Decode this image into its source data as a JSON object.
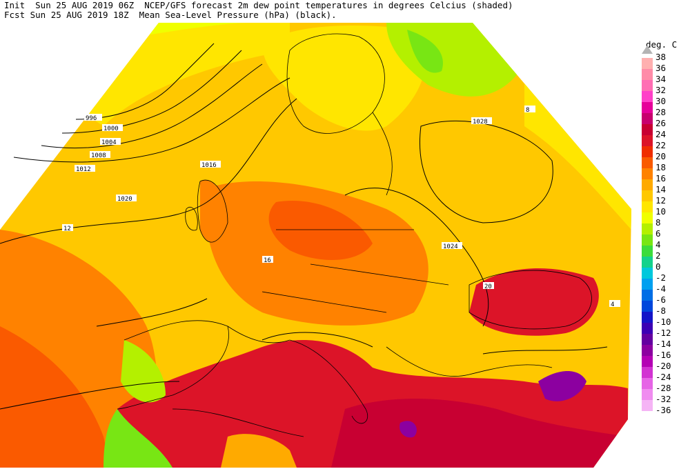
{
  "header": {
    "line1": "Init  Sun 25 AUG 2019 06Z  NCEP/GFS forecast 2m dew point temperatures in degrees Celcius (shaded)",
    "line2": "Fcst Sun 25 AUG 2019 18Z  Mean Sea-Level Pressure (hPa) (black)."
  },
  "legend": {
    "unit": "deg. C",
    "arrow_icon": "triangle-up-icon",
    "items": [
      {
        "label": "38",
        "color": "#b4b4b4"
      },
      {
        "label": "36",
        "color": "#ffb0b0"
      },
      {
        "label": "34",
        "color": "#ff8ca8"
      },
      {
        "label": "32",
        "color": "#ff6eb4"
      },
      {
        "label": "30",
        "color": "#ff40c8"
      },
      {
        "label": "28",
        "color": "#e6009a"
      },
      {
        "label": "26",
        "color": "#c8006e"
      },
      {
        "label": "24",
        "color": "#c80032"
      },
      {
        "label": "22",
        "color": "#dc1428"
      },
      {
        "label": "20",
        "color": "#f02d00"
      },
      {
        "label": "18",
        "color": "#fa5a00"
      },
      {
        "label": "16",
        "color": "#ff8200"
      },
      {
        "label": "14",
        "color": "#ffaa00"
      },
      {
        "label": "12",
        "color": "#ffc800"
      },
      {
        "label": "10",
        "color": "#ffe600"
      },
      {
        "label": "8",
        "color": "#f0ff00"
      },
      {
        "label": "6",
        "color": "#b4f000"
      },
      {
        "label": "4",
        "color": "#78e614"
      },
      {
        "label": "2",
        "color": "#3cdc3c"
      },
      {
        "label": "0",
        "color": "#14d28c"
      },
      {
        "label": "-2",
        "color": "#00c8dc"
      },
      {
        "label": "-4",
        "color": "#00a0f0"
      },
      {
        "label": "-6",
        "color": "#006ee6"
      },
      {
        "label": "-8",
        "color": "#0046dc"
      },
      {
        "label": "-10",
        "color": "#1414c8"
      },
      {
        "label": "-12",
        "color": "#3c00b4"
      },
      {
        "label": "-14",
        "color": "#6400a0"
      },
      {
        "label": "-16",
        "color": "#8c00a0"
      },
      {
        "label": "-20",
        "color": "#b400b4"
      },
      {
        "label": "-24",
        "color": "#d232d2"
      },
      {
        "label": "-28",
        "color": "#e664e6"
      },
      {
        "label": "-32",
        "color": "#f08cf0"
      },
      {
        "label": "-36",
        "color": "#f5b4f5"
      }
    ]
  },
  "map": {
    "isobar_labels": [
      "996",
      "1000",
      "1004",
      "1008",
      "1012",
      "1016",
      "1020",
      "1024",
      "1028"
    ],
    "contour_labels": [
      "12",
      "16",
      "20",
      "8",
      "4"
    ]
  }
}
